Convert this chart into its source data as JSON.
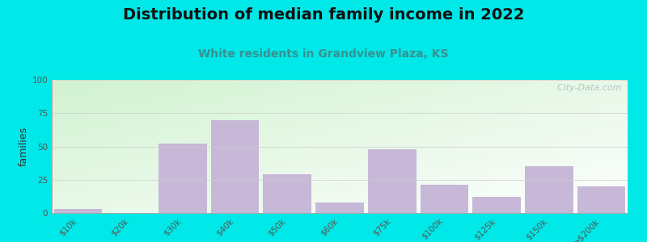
{
  "title": "Distribution of median family income in 2022",
  "subtitle": "White residents in Grandview Plaza, KS",
  "categories": [
    "$10k",
    "$20k",
    "$30k",
    "$40k",
    "$50k",
    "$60k",
    "$75k",
    "$100k",
    "$125k",
    "$150k",
    ">$200k"
  ],
  "values": [
    3,
    0,
    52,
    70,
    29,
    8,
    48,
    21,
    12,
    35,
    20
  ],
  "bar_color": "#c8b8d8",
  "bar_edgecolor": "none",
  "ylabel": "families",
  "ylim": [
    0,
    100
  ],
  "yticks": [
    0,
    25,
    50,
    75,
    100
  ],
  "outer_bg": "#00e8e8",
  "title_fontsize": 14,
  "subtitle_fontsize": 10,
  "subtitle_color": "#3a9090",
  "watermark_text": "  City-Data.com",
  "watermark_color": "#aabbc0",
  "tick_label_fontsize": 7.5,
  "ylabel_fontsize": 9
}
